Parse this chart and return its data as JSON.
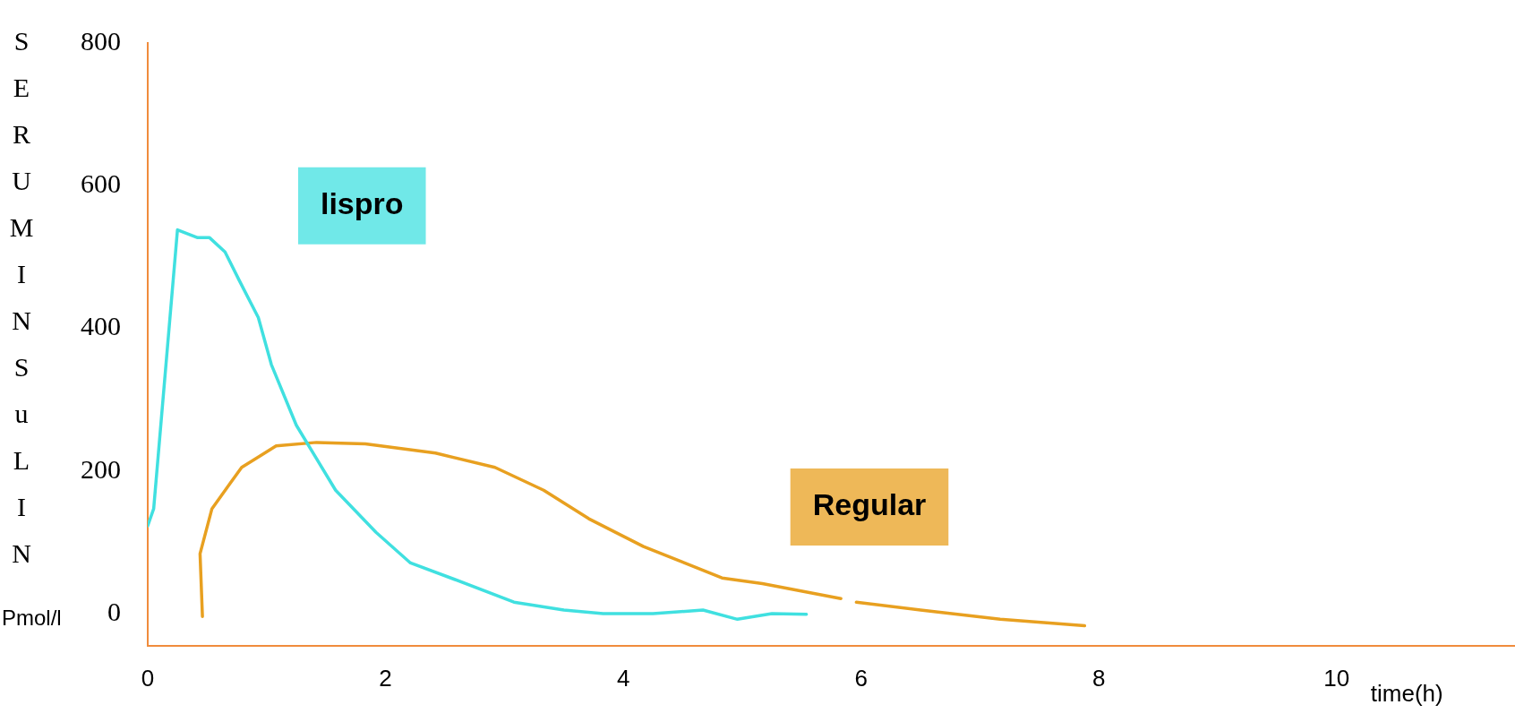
{
  "chart_data": {
    "type": "line",
    "ylabel": "SERUM INSuLIN Pmol/l",
    "xlabel": "time(h)",
    "xlim": [
      0,
      11.5
    ],
    "ylim": [
      -45,
      800
    ],
    "xticks": [
      0,
      2,
      4,
      6,
      8,
      10
    ],
    "yticks": [
      0,
      200,
      400,
      600,
      800
    ],
    "grid": false,
    "legend": false,
    "marker": "none",
    "line_style": "solid",
    "series": [
      {
        "name": "lispro",
        "color": "#40e0e0",
        "x": [
          0,
          0.05,
          0.25,
          0.42,
          0.52,
          0.65,
          0.77,
          0.93,
          1.04,
          1.25,
          1.58,
          1.92,
          2.21,
          2.58,
          3.08,
          3.5,
          3.83,
          4.25,
          4.67,
          4.96,
          5.25,
          5.54
        ],
        "values": [
          123,
          147,
          538,
          527,
          527,
          507,
          467,
          415,
          349,
          264,
          173,
          114,
          71,
          48,
          16,
          5,
          0,
          0,
          5,
          -8,
          0,
          -1
        ]
      },
      {
        "name": "Regular",
        "color": "#e8a020",
        "x": [
          0.46,
          0.44,
          0.54,
          0.79,
          1.08,
          1.42,
          1.83,
          2.42,
          2.92,
          3.33,
          3.71,
          4.17,
          4.83,
          5.17,
          5.83,
          5.9,
          5.96,
          6.5,
          7.17,
          7.88
        ],
        "values": [
          -4,
          84,
          147,
          205,
          235,
          240,
          238,
          225,
          205,
          173,
          133,
          94,
          50,
          42,
          21,
          null,
          16,
          5,
          -8,
          -17
        ]
      }
    ]
  }
}
